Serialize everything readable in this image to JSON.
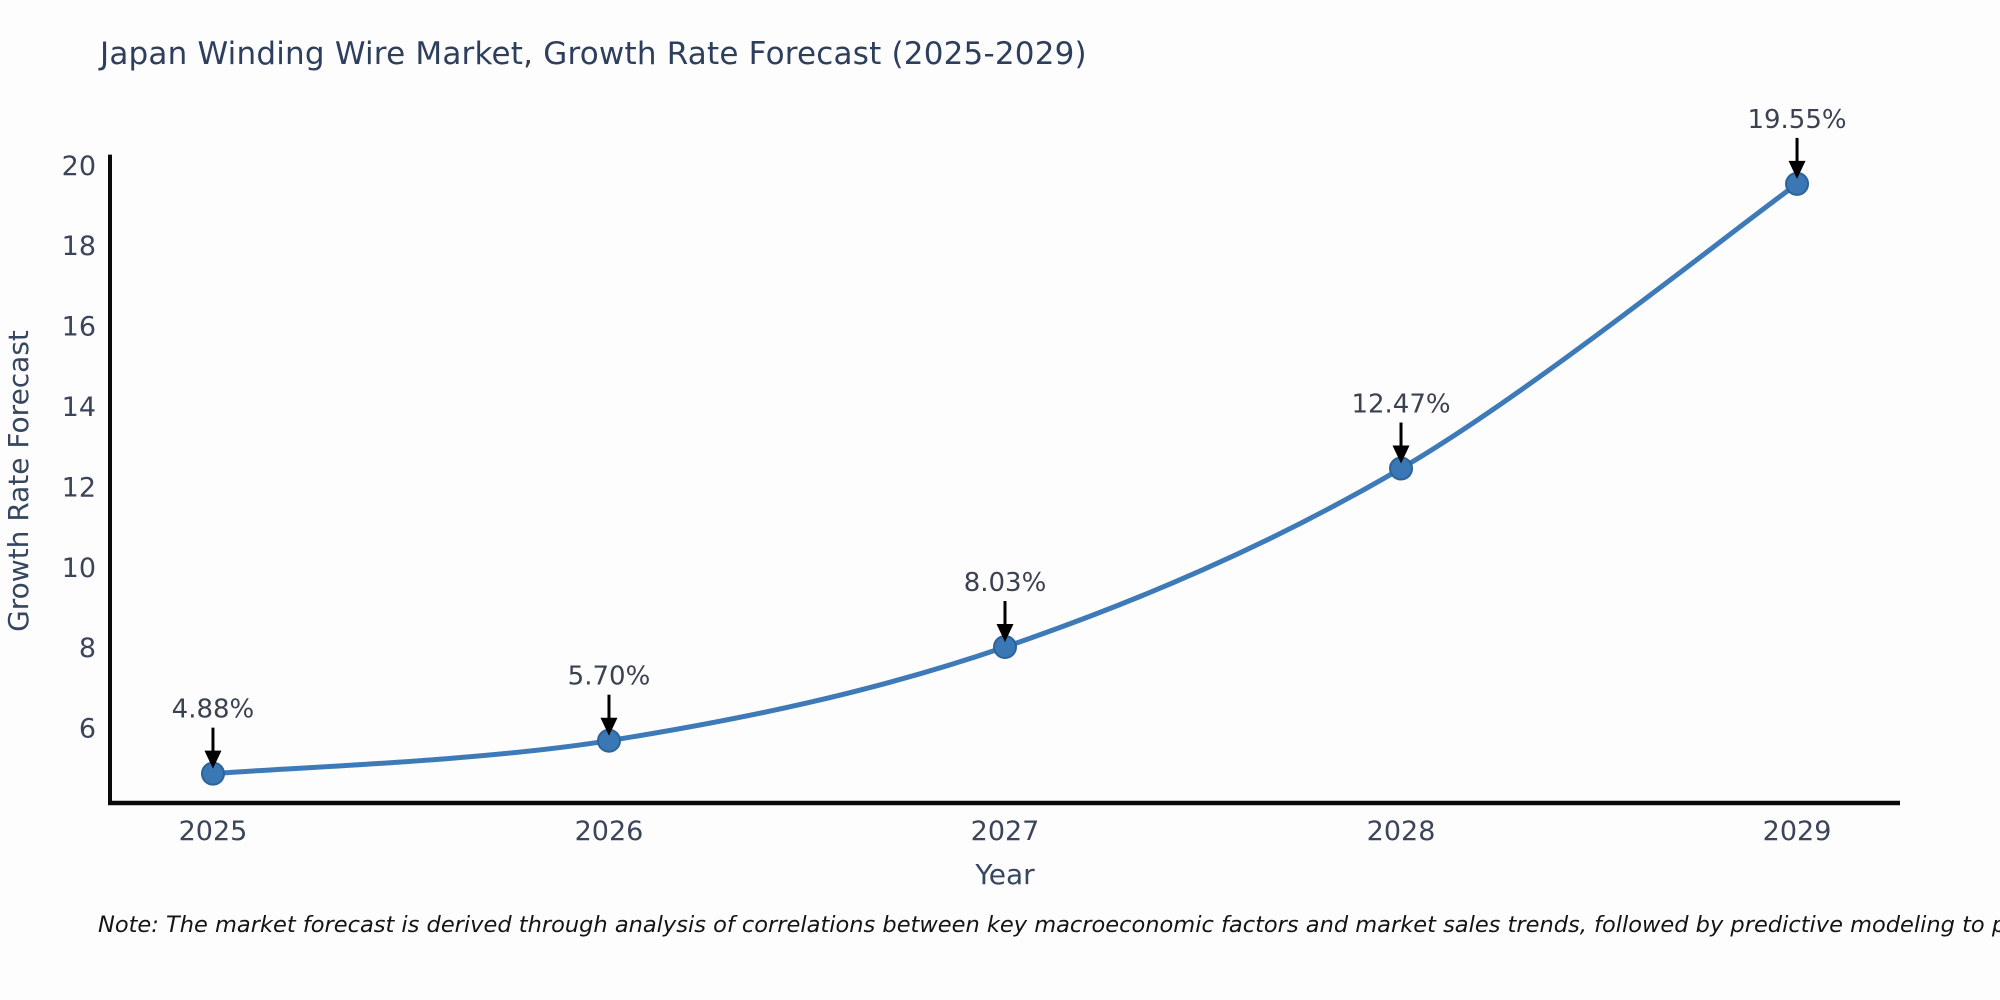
{
  "page": {
    "background_color": "#fdfdfe"
  },
  "header": {
    "title": "Japan Winding Wire Market, Growth Rate Forecast (2025-2029)",
    "title_color": "#2e3f5d"
  },
  "footnote": {
    "text": "Note: The market forecast is derived through analysis of correlations between key macroeconomic factors and market sales trends, followed by predictive modeling to project future sales."
  },
  "chart_data": {
    "type": "line",
    "title": "Japan Winding Wire Market, Growth Rate Forecast (2025-2029)",
    "xlabel": "Year",
    "ylabel": "Growth Rate Forecast",
    "x": [
      2025,
      2026,
      2027,
      2028,
      2029
    ],
    "values": [
      4.88,
      5.7,
      8.03,
      12.47,
      19.55
    ],
    "point_labels": [
      "4.88%",
      "5.70%",
      "8.03%",
      "12.47%",
      "19.55%"
    ],
    "x_tick_labels": [
      "2025",
      "2026",
      "2027",
      "2028",
      "2029"
    ],
    "y_ticks": [
      6,
      8,
      10,
      12,
      14,
      16,
      18,
      20
    ],
    "ylim": [
      4.15,
      20.28
    ],
    "xlim": [
      2024.74,
      2029.26
    ],
    "grid": false,
    "legend_position": "none",
    "smooth_curve": true,
    "colors": {
      "line": "#3d7ab7",
      "marker_fill": "#3a78b5",
      "marker_edge": "#2d6399",
      "annotation_arrow": "#000000",
      "annotation_text": "#3a4150",
      "tick_text": "#3b4559",
      "axis_label_text": "#37465f",
      "spine": "#0a0a0a"
    }
  }
}
